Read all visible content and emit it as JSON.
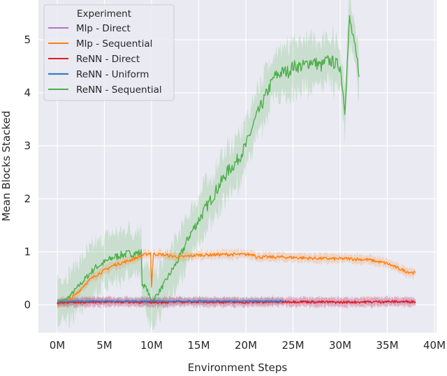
{
  "chart_data": {
    "type": "line",
    "title": "",
    "xlabel": "Environment Steps",
    "ylabel": "Mean Blocks Stacked",
    "xlim": [
      -2,
      40.5
    ],
    "ylim": [
      -0.53,
      5.75
    ],
    "xticks": [
      0,
      5,
      10,
      15,
      20,
      25,
      30,
      35,
      40
    ],
    "xtick_labels": [
      "0M",
      "5M",
      "10M",
      "15M",
      "20M",
      "25M",
      "30M",
      "35M",
      "40M"
    ],
    "yticks": [
      0,
      1,
      2,
      3,
      4,
      5
    ],
    "ytick_labels": [
      "0",
      "1",
      "2",
      "3",
      "4",
      "5"
    ],
    "grid": true,
    "background": "#eaeaf2",
    "legend": {
      "title": "Experiment",
      "position": "upper left"
    },
    "series": [
      {
        "name": "Mlp - Direct",
        "color": "#9c4fb0",
        "line_width": 1,
        "x": [
          0,
          2,
          5,
          10,
          15,
          20,
          25,
          30,
          35,
          38
        ],
        "y": [
          0.05,
          0.05,
          0.06,
          0.05,
          0.06,
          0.05,
          0.06,
          0.05,
          0.06,
          0.06
        ],
        "band": 0.08
      },
      {
        "name": "Mlp - Sequential",
        "color": "#ff7f0e",
        "line_width": 1.4,
        "x": [
          0,
          1,
          2,
          3,
          4,
          5,
          6,
          7,
          8,
          9,
          9.9,
          10,
          10.2,
          11,
          13,
          15,
          18,
          21,
          21.1,
          24,
          27,
          29,
          31,
          33,
          35,
          36,
          37,
          38
        ],
        "y": [
          0.02,
          0.05,
          0.2,
          0.4,
          0.55,
          0.65,
          0.75,
          0.8,
          0.86,
          0.93,
          0.98,
          0.35,
          0.96,
          0.95,
          0.9,
          0.94,
          0.95,
          0.95,
          0.9,
          0.9,
          0.88,
          0.87,
          0.87,
          0.85,
          0.78,
          0.7,
          0.63,
          0.6
        ],
        "band": 0.08
      },
      {
        "name": "ReNN - Direct",
        "color": "#e41a1c",
        "line_width": 1.4,
        "x": [
          0,
          2,
          5,
          10,
          15,
          20,
          25,
          30,
          35,
          38
        ],
        "y": [
          0.03,
          0.05,
          0.06,
          0.05,
          0.06,
          0.05,
          0.06,
          0.05,
          0.06,
          0.06
        ],
        "band": 0.08
      },
      {
        "name": "ReNN - Uniform",
        "color": "#3a7dc0",
        "line_width": 1.6,
        "x": [
          0,
          2,
          5,
          10,
          15,
          20,
          24
        ],
        "y": [
          0.05,
          0.07,
          0.07,
          0.07,
          0.07,
          0.07,
          0.07
        ],
        "band": 0.06
      },
      {
        "name": "ReNN - Sequential",
        "color": "#4daf4a",
        "line_width": 1.4,
        "x": [
          0,
          1,
          2,
          3,
          4,
          5,
          6,
          7,
          8,
          8.9,
          9,
          9.5,
          10,
          11,
          12,
          13,
          14,
          15,
          16,
          17,
          18,
          19,
          20,
          21,
          22,
          23,
          24,
          24.5,
          25,
          26,
          27,
          28,
          28.5,
          29,
          30,
          30.5,
          31,
          31.5,
          32
        ],
        "y": [
          0.05,
          0.1,
          0.3,
          0.5,
          0.7,
          0.8,
          0.9,
          0.95,
          0.97,
          0.98,
          0.4,
          0.3,
          0.05,
          0.3,
          0.6,
          0.9,
          1.3,
          1.6,
          1.9,
          2.2,
          2.5,
          2.7,
          3.0,
          3.5,
          3.9,
          4.3,
          4.4,
          4.4,
          4.5,
          4.5,
          4.6,
          4.5,
          4.6,
          4.6,
          4.5,
          3.7,
          5.4,
          4.9,
          4.4
        ],
        "band": 0.45
      }
    ]
  }
}
